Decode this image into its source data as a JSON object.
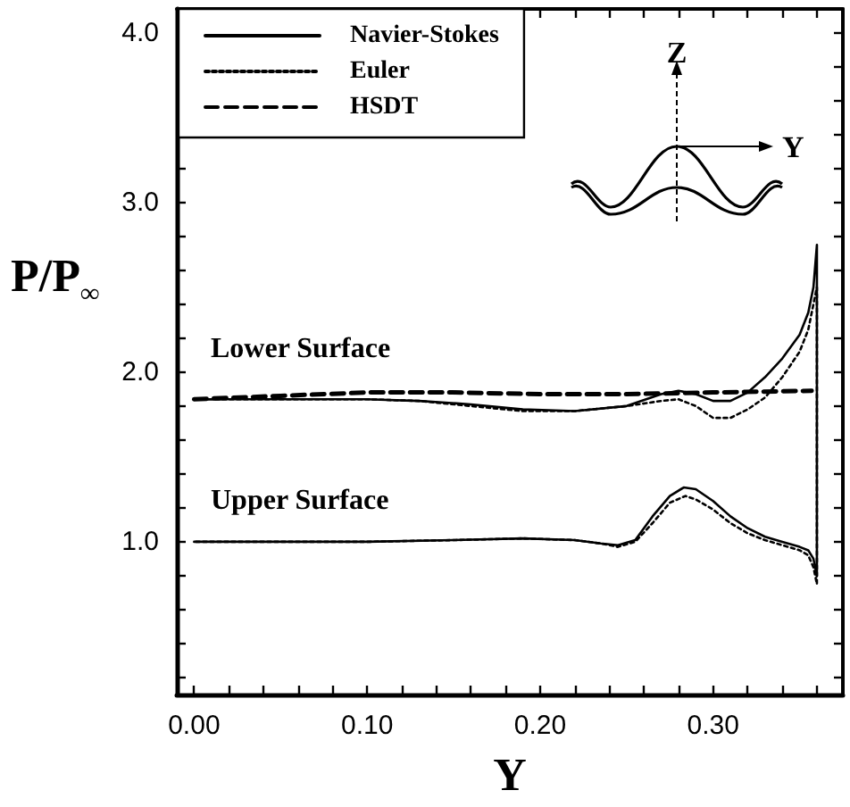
{
  "chart_data": {
    "type": "line",
    "xlabel": "Y",
    "ylabel": "P/P$_{∞}$",
    "annotations": [
      "Lower Surface",
      "Upper Surface",
      "Z",
      "Y"
    ],
    "xlim": [
      -0.01,
      0.375
    ],
    "ylim": [
      0.1,
      4.14
    ],
    "xticks": [
      {
        "value": 0,
        "label": "0.00"
      },
      {
        "value": 0.02,
        "label": null
      },
      {
        "value": 0.04,
        "label": null
      },
      {
        "value": 0.06,
        "label": null
      },
      {
        "value": 0.08,
        "label": null
      },
      {
        "value": 0.1,
        "label": "0.10"
      },
      {
        "value": 0.12,
        "label": null
      },
      {
        "value": 0.14,
        "label": null
      },
      {
        "value": 0.16,
        "label": null
      },
      {
        "value": 0.18,
        "label": null
      },
      {
        "value": 0.2,
        "label": "0.20"
      },
      {
        "value": 0.22,
        "label": null
      },
      {
        "value": 0.24,
        "label": null
      },
      {
        "value": 0.26,
        "label": null
      },
      {
        "value": 0.28,
        "label": null
      },
      {
        "value": 0.3,
        "label": "0.30"
      },
      {
        "value": 0.32,
        "label": null
      },
      {
        "value": 0.34,
        "label": null
      },
      {
        "value": 0.36,
        "label": null
      }
    ],
    "yticks": [
      {
        "value": 0.2,
        "label": null
      },
      {
        "value": 0.4,
        "label": null
      },
      {
        "value": 0.6,
        "label": null
      },
      {
        "value": 0.8,
        "label": null
      },
      {
        "value": 1.0,
        "label": "1.0"
      },
      {
        "value": 1.2,
        "label": null
      },
      {
        "value": 1.4,
        "label": null
      },
      {
        "value": 1.6,
        "label": null
      },
      {
        "value": 1.8,
        "label": null
      },
      {
        "value": 2.0,
        "label": "2.0"
      },
      {
        "value": 2.2,
        "label": null
      },
      {
        "value": 2.4,
        "label": null
      },
      {
        "value": 2.6,
        "label": null
      },
      {
        "value": 2.8,
        "label": null
      },
      {
        "value": 3.0,
        "label": "3.0"
      },
      {
        "value": 3.2,
        "label": null
      },
      {
        "value": 3.4,
        "label": null
      },
      {
        "value": 3.6,
        "label": null
      },
      {
        "value": 3.8,
        "label": null
      },
      {
        "value": 4.0,
        "label": "4.0"
      }
    ],
    "grid": false,
    "legend": "top left",
    "marker": "none",
    "series": [
      {
        "name": "Navier-Stokes",
        "color": "#000000",
        "line_style": "solid",
        "x": [
          0,
          0.05,
          0.1,
          0.13,
          0.16,
          0.19,
          0.22,
          0.25,
          0.27,
          0.28,
          0.29,
          0.3,
          0.31,
          0.32,
          0.33,
          0.34,
          0.35,
          0.355,
          0.358,
          0.36,
          0.36,
          0.358,
          0.355,
          0.35,
          0.34,
          0.33,
          0.32,
          0.31,
          0.3,
          0.29,
          0.283,
          0.275,
          0.265,
          0.255,
          0.245,
          0.235,
          0.22,
          0.19,
          0.15,
          0.1,
          0.05,
          0
        ],
        "values": [
          1.84,
          1.84,
          1.84,
          1.83,
          1.81,
          1.78,
          1.77,
          1.8,
          1.87,
          1.89,
          1.87,
          1.83,
          1.83,
          1.88,
          1.97,
          2.08,
          2.22,
          2.35,
          2.5,
          2.75,
          0.8,
          0.9,
          0.95,
          0.97,
          1.0,
          1.03,
          1.08,
          1.15,
          1.24,
          1.31,
          1.32,
          1.27,
          1.15,
          1.01,
          0.98,
          0.99,
          1.01,
          1.02,
          1.01,
          1.0,
          1.0,
          1.0
        ]
      },
      {
        "name": "Euler",
        "color": "#000000",
        "line_style": "dotted",
        "x": [
          0,
          0.05,
          0.1,
          0.13,
          0.16,
          0.19,
          0.22,
          0.25,
          0.27,
          0.28,
          0.29,
          0.3,
          0.31,
          0.32,
          0.33,
          0.34,
          0.35,
          0.355,
          0.358,
          0.36,
          0.36,
          0.358,
          0.355,
          0.35,
          0.34,
          0.33,
          0.32,
          0.31,
          0.3,
          0.29,
          0.284,
          0.275,
          0.265,
          0.255,
          0.245,
          0.235,
          0.22,
          0.19,
          0.15,
          0.1,
          0.05,
          0
        ],
        "values": [
          1.84,
          1.84,
          1.84,
          1.83,
          1.8,
          1.77,
          1.77,
          1.8,
          1.83,
          1.84,
          1.8,
          1.73,
          1.73,
          1.78,
          1.85,
          1.97,
          2.12,
          2.25,
          2.4,
          2.5,
          0.75,
          0.85,
          0.92,
          0.95,
          0.98,
          1.01,
          1.05,
          1.11,
          1.19,
          1.25,
          1.27,
          1.23,
          1.11,
          1.0,
          0.97,
          0.99,
          1.01,
          1.02,
          1.01,
          1.0,
          1.0,
          1.0
        ]
      },
      {
        "name": "HSDT",
        "color": "#000000",
        "line_style": "dashed",
        "x": [
          0,
          0.05,
          0.1,
          0.15,
          0.2,
          0.25,
          0.3,
          0.357
        ],
        "values": [
          1.84,
          1.86,
          1.88,
          1.88,
          1.87,
          1.87,
          1.88,
          1.89
        ]
      }
    ]
  }
}
